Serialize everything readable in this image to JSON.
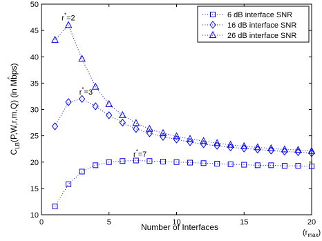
{
  "chart_data": {
    "type": "line",
    "title": "",
    "xlabel": "Number of Interfaces",
    "xlabel_extra": "(r",
    "xlabel_extra_sub": "max",
    "xlabel_extra_close": ")",
    "ylabel": {
      "main": "C",
      "sub": "LB",
      "rest": "(P,W,r,m,Q) (in Mbps)",
      "hat": "^"
    },
    "xlim": [
      0,
      20
    ],
    "ylim": [
      10,
      50
    ],
    "x_ticks": [
      0,
      5,
      10,
      15,
      20
    ],
    "y_ticks": [
      10,
      15,
      20,
      25,
      30,
      35,
      40,
      45,
      50
    ],
    "grid": false,
    "legend_position": "top-right",
    "x": [
      1,
      2,
      3,
      4,
      5,
      6,
      7,
      8,
      9,
      10,
      11,
      12,
      13,
      14,
      15,
      16,
      17,
      18,
      19,
      20
    ],
    "series": [
      {
        "name": "6 dB interface SNR",
        "marker": "square",
        "color": "#0000ff",
        "values": [
          11.6,
          15.8,
          18.2,
          19.4,
          20.0,
          20.2,
          20.3,
          20.2,
          20.1,
          20.0,
          19.9,
          19.8,
          19.7,
          19.6,
          19.5,
          19.4,
          19.4,
          19.3,
          19.3,
          19.2
        ]
      },
      {
        "name": "16 dB interface SNR",
        "marker": "diamond",
        "color": "#0000ff",
        "values": [
          26.8,
          31.4,
          32.0,
          30.6,
          28.9,
          27.5,
          26.3,
          25.5,
          24.8,
          24.3,
          23.8,
          23.4,
          23.1,
          22.8,
          22.6,
          22.4,
          22.2,
          22.0,
          21.9,
          21.7
        ]
      },
      {
        "name": "26 dB interface SNR",
        "marker": "triangle",
        "color": "#0000ff",
        "values": [
          43.2,
          46.0,
          39.6,
          34.3,
          31.0,
          28.9,
          27.4,
          26.3,
          25.5,
          24.9,
          24.4,
          24.0,
          23.6,
          23.3,
          23.0,
          22.8,
          22.6,
          22.4,
          22.3,
          22.1
        ]
      }
    ],
    "annotations": [
      {
        "text": "r",
        "sup": "*",
        "rest": "=2",
        "x": 1.5,
        "y": 46.9
      },
      {
        "text": "r",
        "sup": "*",
        "rest": "=3",
        "x": 2.8,
        "y": 32.8
      },
      {
        "text": "r",
        "sup": "*",
        "rest": "=7",
        "x": 6.8,
        "y": 21.0
      }
    ]
  }
}
